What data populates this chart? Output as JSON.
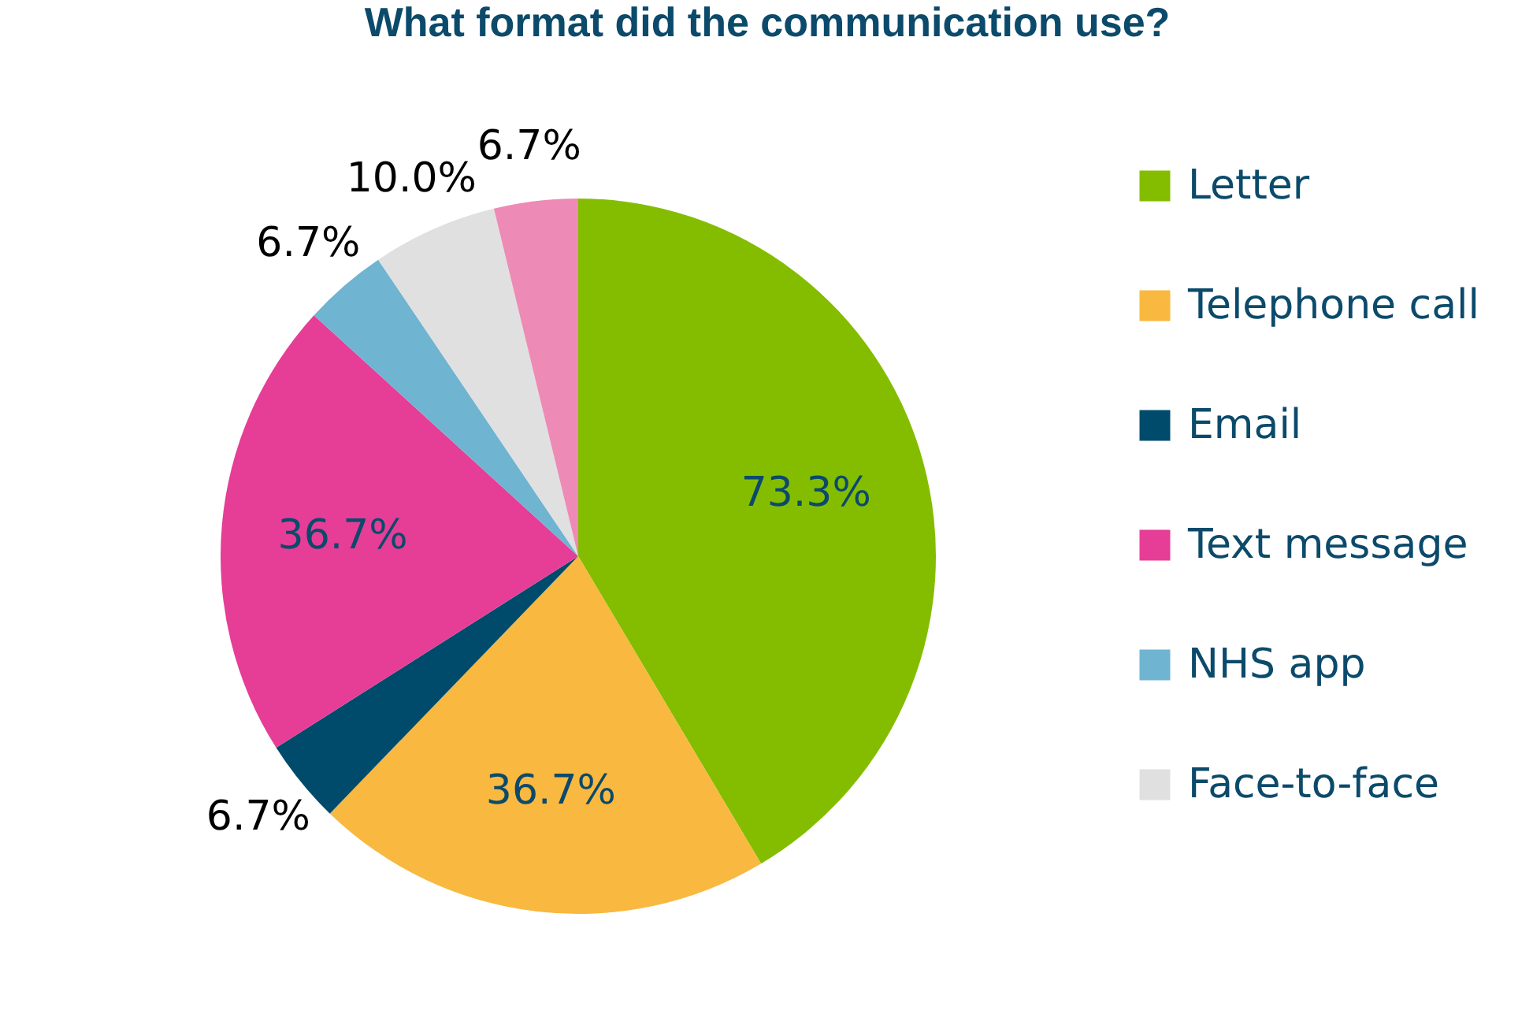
{
  "chart_data": {
    "type": "pie",
    "title": "What format did the communication use?",
    "categories": [
      "Letter",
      "Telephone call",
      "Email",
      "Text message",
      "NHS app",
      "Face-to-face",
      null
    ],
    "values": [
      73.3,
      36.7,
      6.7,
      36.7,
      6.7,
      10.0,
      6.7
    ],
    "value_labels": [
      "73.3%",
      "36.7%",
      "6.7%",
      "36.7%",
      "6.7%",
      "10.0%",
      "6.7%"
    ],
    "colors": [
      "#84bd00",
      "#f9b83f",
      "#004b6b",
      "#e63d96",
      "#6fb4d1",
      "#e0e0e0",
      "#ed8bb6"
    ],
    "legend": "right"
  }
}
